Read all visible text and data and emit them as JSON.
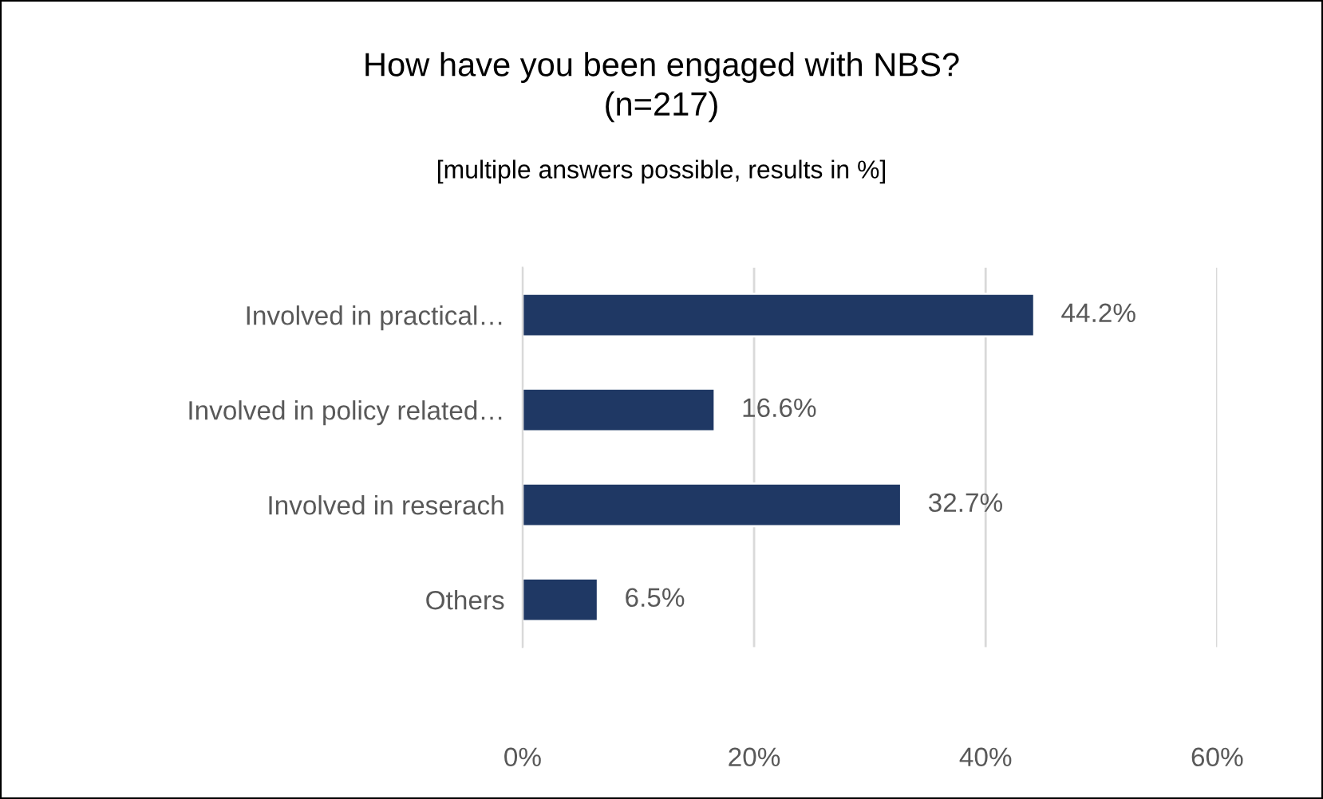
{
  "chart_data": {
    "type": "bar",
    "orientation": "horizontal",
    "title": "How have you been engaged with NBS?\n(n=217)",
    "subtitle": "[multiple answers possible, results in %]",
    "categories": [
      "Involved in practical…",
      "Involved in policy related…",
      "Involved in reserach",
      "Others"
    ],
    "values": [
      44.2,
      16.6,
      32.7,
      6.5
    ],
    "value_labels": [
      "44.2%",
      "16.6%",
      "32.7%",
      "6.5%"
    ],
    "color": "#1f3864",
    "xlim": [
      0,
      60
    ],
    "xticks": [
      {
        "value": 0,
        "label": "0%"
      },
      {
        "value": 20,
        "label": "20%"
      },
      {
        "value": 40,
        "label": "40%"
      },
      {
        "value": 60,
        "label": "60%"
      }
    ],
    "grid": "x"
  }
}
